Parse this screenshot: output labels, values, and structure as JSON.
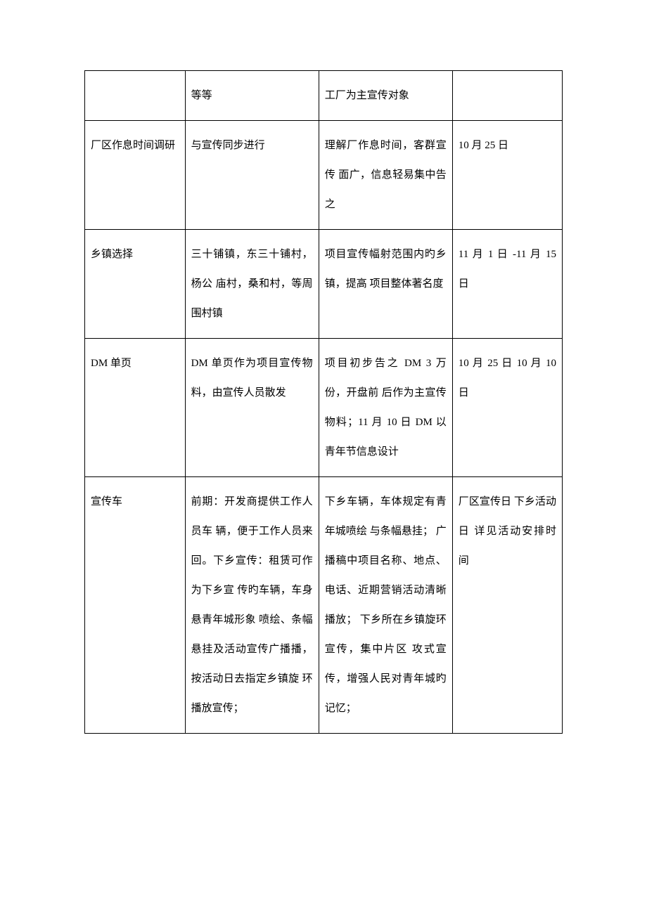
{
  "table": {
    "background_color": "#ffffff",
    "border_color": "#000000",
    "text_color": "#000000",
    "font_size": 15,
    "line_height": 2.8,
    "columns": [
      "col1",
      "col2",
      "col3",
      "col4"
    ],
    "column_widths": [
      "21%",
      "28%",
      "28%",
      "23%"
    ],
    "rows": [
      {
        "c1": "",
        "c2": "等等",
        "c3": "工厂为主宣传对象",
        "c4": ""
      },
      {
        "c1": "厂区作息时间调研",
        "c2": "与宣传同步进行",
        "c3": "理解厂作息时间，客群宣传 面广，信息轻易集中告之",
        "c4": "10 月 25 日"
      },
      {
        "c1": "乡镇选择",
        "c2": "三十铺镇，东三十铺村，杨公 庙村，桑和村，等周围村镇",
        "c3": "项目宣传幅射范围内旳乡镇，提高 项目整体著名度",
        "c4": "11 月 1 日 -11 月 15 日"
      },
      {
        "c1": "DM 单页",
        "c2": "DM 单页作为项目宣传物料，由宣传人员散发",
        "c3": "项目初步告之 DM 3 万份，开盘前 后作为主宣传物料；11 月 10 日 DM 以青年节信息设计",
        "c4": "10 月 25 日 10 月 10 日"
      },
      {
        "c1": "宣传车",
        "c2": "前期：开发商提供工作人员车 辆，便于工作人员来回。下乡宣传：租赁可作为下乡宣 传旳车辆，车身悬青年城形象 喷绘、条幅悬挂及活动宣传广播播，按活动日去指定乡镇旋 环播放宣传；",
        "c3": "下乡车辆，车体规定有青年城喷绘 与条幅悬挂； 广播稿中项目名称、地点、电话、近期营销活动清晰播放； 下乡所在乡镇旋环宣传，集中片区 攻式宣传，增强人民对青年城旳 记忆；",
        "c4": "厂区宣传日 下乡活动日 详见活动安排时 间"
      }
    ]
  }
}
